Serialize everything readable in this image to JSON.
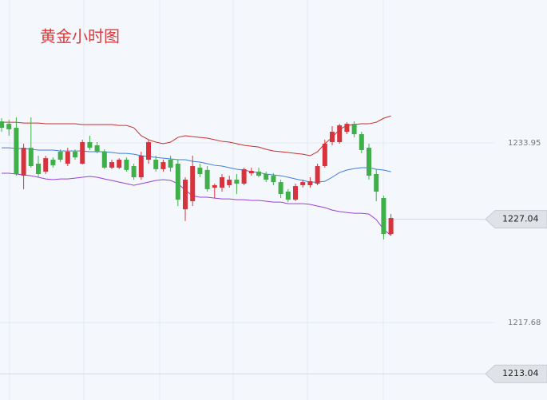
{
  "chart_data": {
    "type": "candlestick",
    "title": "黄金小时图",
    "open": [
      1235.9,
      1235.68,
      1235.32,
      1230.98,
      1233.51,
      1232.07,
      1231.35,
      1232.43,
      1233.15,
      1232.07,
      1233.15,
      1232.07,
      1234.02,
      1233.73,
      1233.15,
      1231.71,
      1231.71,
      1232.43,
      1231.85,
      1230.84,
      1232.43,
      1232.43,
      1231.57,
      1232.43,
      1232.07,
      1227.94,
      1228.67,
      1231.71,
      1231.5,
      1229.9,
      1229.9,
      1230.12,
      1230.62,
      1230.26,
      1231.2,
      1231.35,
      1231.13,
      1230.98,
      1230.4,
      1229.54,
      1228.81,
      1230.12,
      1230.12,
      1230.26,
      1231.85,
      1234.02,
      1234.02,
      1234.96,
      1235.68,
      1234.74,
      1233.51,
      1231.13,
      1228.96,
      1225.7
    ],
    "high": [
      1236.19,
      1236.04,
      1236.26,
      1233.88,
      1236.26,
      1232.79,
      1232.79,
      1232.64,
      1233.37,
      1233.51,
      1233.37,
      1234.24,
      1234.6,
      1234.02,
      1233.37,
      1232.43,
      1232.57,
      1232.64,
      1232.07,
      1233.15,
      1234.24,
      1232.79,
      1232.43,
      1232.79,
      1232.43,
      1230.84,
      1232.79,
      1232.07,
      1231.85,
      1230.26,
      1231.13,
      1230.98,
      1231.13,
      1231.71,
      1231.71,
      1231.71,
      1231.35,
      1231.2,
      1230.62,
      1229.76,
      1230.26,
      1230.62,
      1230.84,
      1232.07,
      1234.24,
      1235.47,
      1235.68,
      1235.83,
      1235.9,
      1234.96,
      1233.88,
      1231.57,
      1229.18,
      1227.51
    ],
    "low": [
      1234.96,
      1234.6,
      1230.98,
      1229.76,
      1231.71,
      1230.84,
      1231.13,
      1231.71,
      1232.21,
      1231.85,
      1232.43,
      1232.0,
      1233.3,
      1233.01,
      1231.57,
      1231.57,
      1231.57,
      1231.35,
      1230.62,
      1230.62,
      1232.07,
      1231.35,
      1231.35,
      1231.35,
      1228.23,
      1226.87,
      1228.23,
      1230.84,
      1229.54,
      1228.96,
      1229.54,
      1229.9,
      1229.32,
      1230.12,
      1230.98,
      1230.84,
      1230.4,
      1230.12,
      1228.96,
      1228.59,
      1228.67,
      1229.9,
      1229.9,
      1230.12,
      1231.71,
      1233.73,
      1233.88,
      1234.74,
      1234.45,
      1233.01,
      1230.62,
      1228.67,
      1225.2,
      1225.56
    ],
    "close": [
      1235.32,
      1235.18,
      1231.13,
      1233.51,
      1231.85,
      1231.13,
      1232.57,
      1231.93,
      1232.43,
      1233.15,
      1232.64,
      1234.02,
      1233.51,
      1233.15,
      1231.71,
      1232.21,
      1232.43,
      1231.5,
      1230.84,
      1232.79,
      1234.02,
      1231.57,
      1232.21,
      1231.71,
      1228.81,
      1230.62,
      1231.85,
      1231.13,
      1229.76,
      1230.12,
      1230.84,
      1230.62,
      1230.26,
      1231.57,
      1231.42,
      1230.98,
      1230.62,
      1230.4,
      1229.32,
      1228.81,
      1230.04,
      1230.4,
      1230.48,
      1231.85,
      1233.88,
      1234.96,
      1235.54,
      1235.68,
      1234.74,
      1233.3,
      1230.98,
      1229.54,
      1225.7,
      1227.15
    ],
    "up_color": "#d8333d",
    "down_color": "#3faf4a",
    "bands": [
      {
        "color": "#c9302c",
        "values": [
          1235.82,
          1235.82,
          1235.82,
          1235.75,
          1235.75,
          1235.75,
          1235.68,
          1235.68,
          1235.68,
          1235.68,
          1235.68,
          1235.61,
          1235.61,
          1235.61,
          1235.61,
          1235.61,
          1235.53,
          1235.53,
          1235.32,
          1234.6,
          1234.24,
          1234.02,
          1233.88,
          1234.02,
          1234.45,
          1234.6,
          1234.52,
          1234.45,
          1234.38,
          1234.24,
          1234.09,
          1234.02,
          1233.88,
          1233.73,
          1233.65,
          1233.58,
          1233.37,
          1233.22,
          1233.15,
          1233.08,
          1233.0,
          1232.93,
          1232.79,
          1233.15,
          1233.88,
          1234.45,
          1235.17,
          1235.53,
          1235.61,
          1235.68,
          1235.68,
          1235.82,
          1236.18,
          1236.4
        ]
      },
      {
        "color": "#3b7fd9",
        "values": [
          1233.51,
          1233.51,
          1233.44,
          1233.44,
          1233.37,
          1233.3,
          1233.3,
          1233.3,
          1233.22,
          1233.22,
          1233.22,
          1233.22,
          1233.15,
          1233.15,
          1233.15,
          1233.08,
          1233.0,
          1233.0,
          1232.93,
          1232.79,
          1232.71,
          1232.64,
          1232.57,
          1232.5,
          1232.43,
          1232.43,
          1232.28,
          1232.21,
          1232.07,
          1231.92,
          1231.85,
          1231.71,
          1231.56,
          1231.49,
          1231.34,
          1231.27,
          1231.13,
          1231.05,
          1230.98,
          1230.84,
          1230.69,
          1230.55,
          1230.4,
          1230.4,
          1230.47,
          1230.84,
          1231.27,
          1231.49,
          1231.63,
          1231.71,
          1231.71,
          1231.56,
          1231.49,
          1231.34
        ]
      },
      {
        "color": "#9a3fd6",
        "values": [
          1231.2,
          1231.2,
          1231.13,
          1231.05,
          1230.98,
          1230.84,
          1230.69,
          1230.62,
          1230.69,
          1230.69,
          1230.76,
          1230.84,
          1230.91,
          1230.84,
          1230.69,
          1230.55,
          1230.4,
          1230.26,
          1230.11,
          1230.26,
          1230.4,
          1230.55,
          1230.62,
          1230.55,
          1230.26,
          1229.68,
          1229.17,
          1229.03,
          1229.03,
          1228.95,
          1228.88,
          1228.88,
          1228.81,
          1228.81,
          1228.74,
          1228.74,
          1228.67,
          1228.59,
          1228.59,
          1228.45,
          1228.45,
          1228.45,
          1228.38,
          1228.23,
          1228.09,
          1227.87,
          1227.73,
          1227.65,
          1227.58,
          1227.58,
          1227.51,
          1227.0,
          1226.13,
          1225.56
        ]
      }
    ],
    "ylim": [
      1210.67,
      1246.89
    ],
    "yticks": [
      1217.68,
      1233.95
    ],
    "price_tags": [
      1227.04,
      1213.04
    ],
    "grid": true
  }
}
